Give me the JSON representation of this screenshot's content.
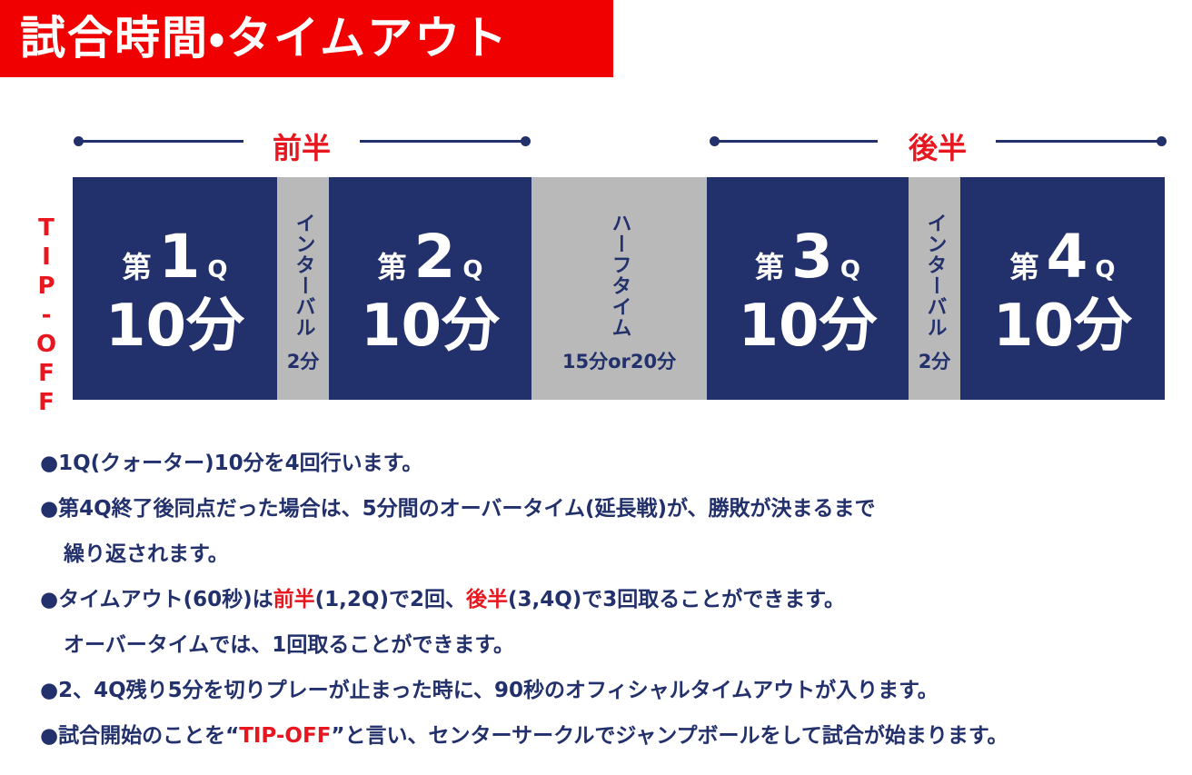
{
  "header": {
    "title": "試合時間・タイムアウト"
  },
  "halves": [
    "前半",
    "後半"
  ],
  "tip_off": "TIP-OFF",
  "blocks": [
    {
      "kind": "quarter",
      "prefix": "第",
      "number": "1",
      "suffix": "Q",
      "duration": "10分"
    },
    {
      "kind": "interval",
      "label": "インターバル",
      "duration": "2分"
    },
    {
      "kind": "quarter",
      "prefix": "第",
      "number": "2",
      "suffix": "Q",
      "duration": "10分"
    },
    {
      "kind": "halftime",
      "label": "ハーフタイム",
      "duration": "15分or20分"
    },
    {
      "kind": "quarter",
      "prefix": "第",
      "number": "3",
      "suffix": "Q",
      "duration": "10分"
    },
    {
      "kind": "interval",
      "label": "インターバル",
      "duration": "2分"
    },
    {
      "kind": "quarter",
      "prefix": "第",
      "number": "4",
      "suffix": "Q",
      "duration": "10分"
    }
  ],
  "notes": [
    [
      [
        {
          "text": "●1Q(クォーター)10分を4回行います。"
        }
      ]
    ],
    [
      [
        {
          "text": "●第4Q終了後同点だった場合は、5分間のオーバータイム(延長戦)が、勝敗が決まるまで"
        }
      ],
      [
        {
          "text": "繰り返されます。"
        }
      ]
    ],
    [
      [
        {
          "text": "●タイムアウト(60秒)は"
        },
        {
          "text": "前半",
          "color": "#e8161e"
        },
        {
          "text": "(1,2Q)で2回、"
        },
        {
          "text": "後半",
          "color": "#e8161e"
        },
        {
          "text": "(3,4Q)で3回取ることができます。"
        }
      ],
      [
        {
          "text": "オーバータイムでは、1回取ることができます。"
        }
      ]
    ],
    [
      [
        {
          "text": "●2、4Q残り5分を切りプレーが止まった時に、90秒のオフィシャルタイムアウトが入ります。"
        }
      ]
    ],
    [
      [
        {
          "text": "●試合開始のことを“"
        },
        {
          "text": "TIP-OFF",
          "color": "#e8161e"
        },
        {
          "text": "”と言い、センターサークルでジャンプボールをして試合が始まります。"
        }
      ]
    ]
  ]
}
